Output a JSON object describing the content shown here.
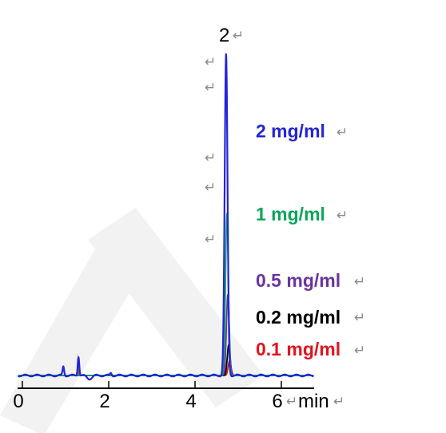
{
  "chart_data": {
    "type": "line",
    "xlabel": "min",
    "xlim": [
      0,
      6.6
    ],
    "xticks": [
      0,
      2,
      4,
      6
    ],
    "ylabel": "",
    "ylim": [
      -0.03,
      1.0
    ],
    "peak_label": "2",
    "mark_glyph": "↵",
    "series": [
      {
        "name": "2 mg/ml",
        "color": "#2424d8",
        "peak_time": 4.72,
        "peak_height": 1.0
      },
      {
        "name": "1 mg/ml",
        "color": "#0ca65a",
        "peak_time": 4.74,
        "peak_height": 0.505
      },
      {
        "name": "0.5 mg/ml",
        "color": "#6a33a0",
        "peak_time": 4.76,
        "peak_height": 0.253
      },
      {
        "name": "0.2 mg/ml",
        "color": "#000000",
        "peak_time": 4.78,
        "peak_height": 0.095
      },
      {
        "name": "0.1 mg/ml",
        "color": "#e0141e",
        "peak_time": 4.8,
        "peak_height": 0.045
      }
    ],
    "minor_peaks": [
      {
        "time": 0.95,
        "height": 0.028
      },
      {
        "time": 1.3,
        "height": 0.06
      },
      {
        "time": 2.05,
        "height": 0.008
      }
    ]
  }
}
